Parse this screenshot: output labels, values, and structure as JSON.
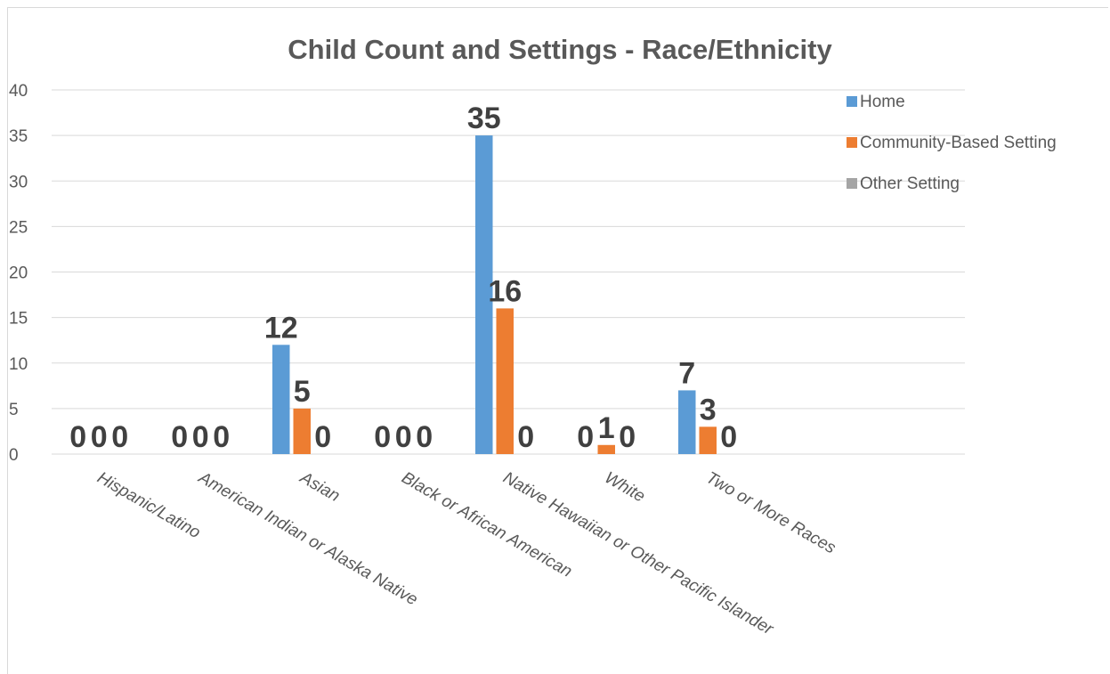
{
  "chart_data": {
    "type": "bar",
    "title": "Child Count and Settings - Race/Ethnicity",
    "categories": [
      "Hispanic/Latino",
      "American Indian or Alaska Native",
      "Asian",
      "Black or African American",
      "Native Hawaiian or Other Pacific Islander",
      "White",
      "Two or More Races"
    ],
    "series": [
      {
        "name": "Home",
        "color": "#5b9bd5",
        "values": [
          0,
          0,
          12,
          0,
          35,
          0,
          7
        ]
      },
      {
        "name": "Community-Based Setting",
        "color": "#ed7d31",
        "values": [
          0,
          0,
          5,
          0,
          16,
          1,
          3
        ]
      },
      {
        "name": "Other Setting",
        "color": "#a5a5a5",
        "values": [
          0,
          0,
          0,
          0,
          0,
          0,
          0
        ]
      }
    ],
    "ylim": [
      0,
      40
    ],
    "yticks": [
      0,
      5,
      10,
      15,
      20,
      25,
      30,
      35,
      40
    ],
    "grid": true,
    "legend_position": "right",
    "data_labels": true
  }
}
